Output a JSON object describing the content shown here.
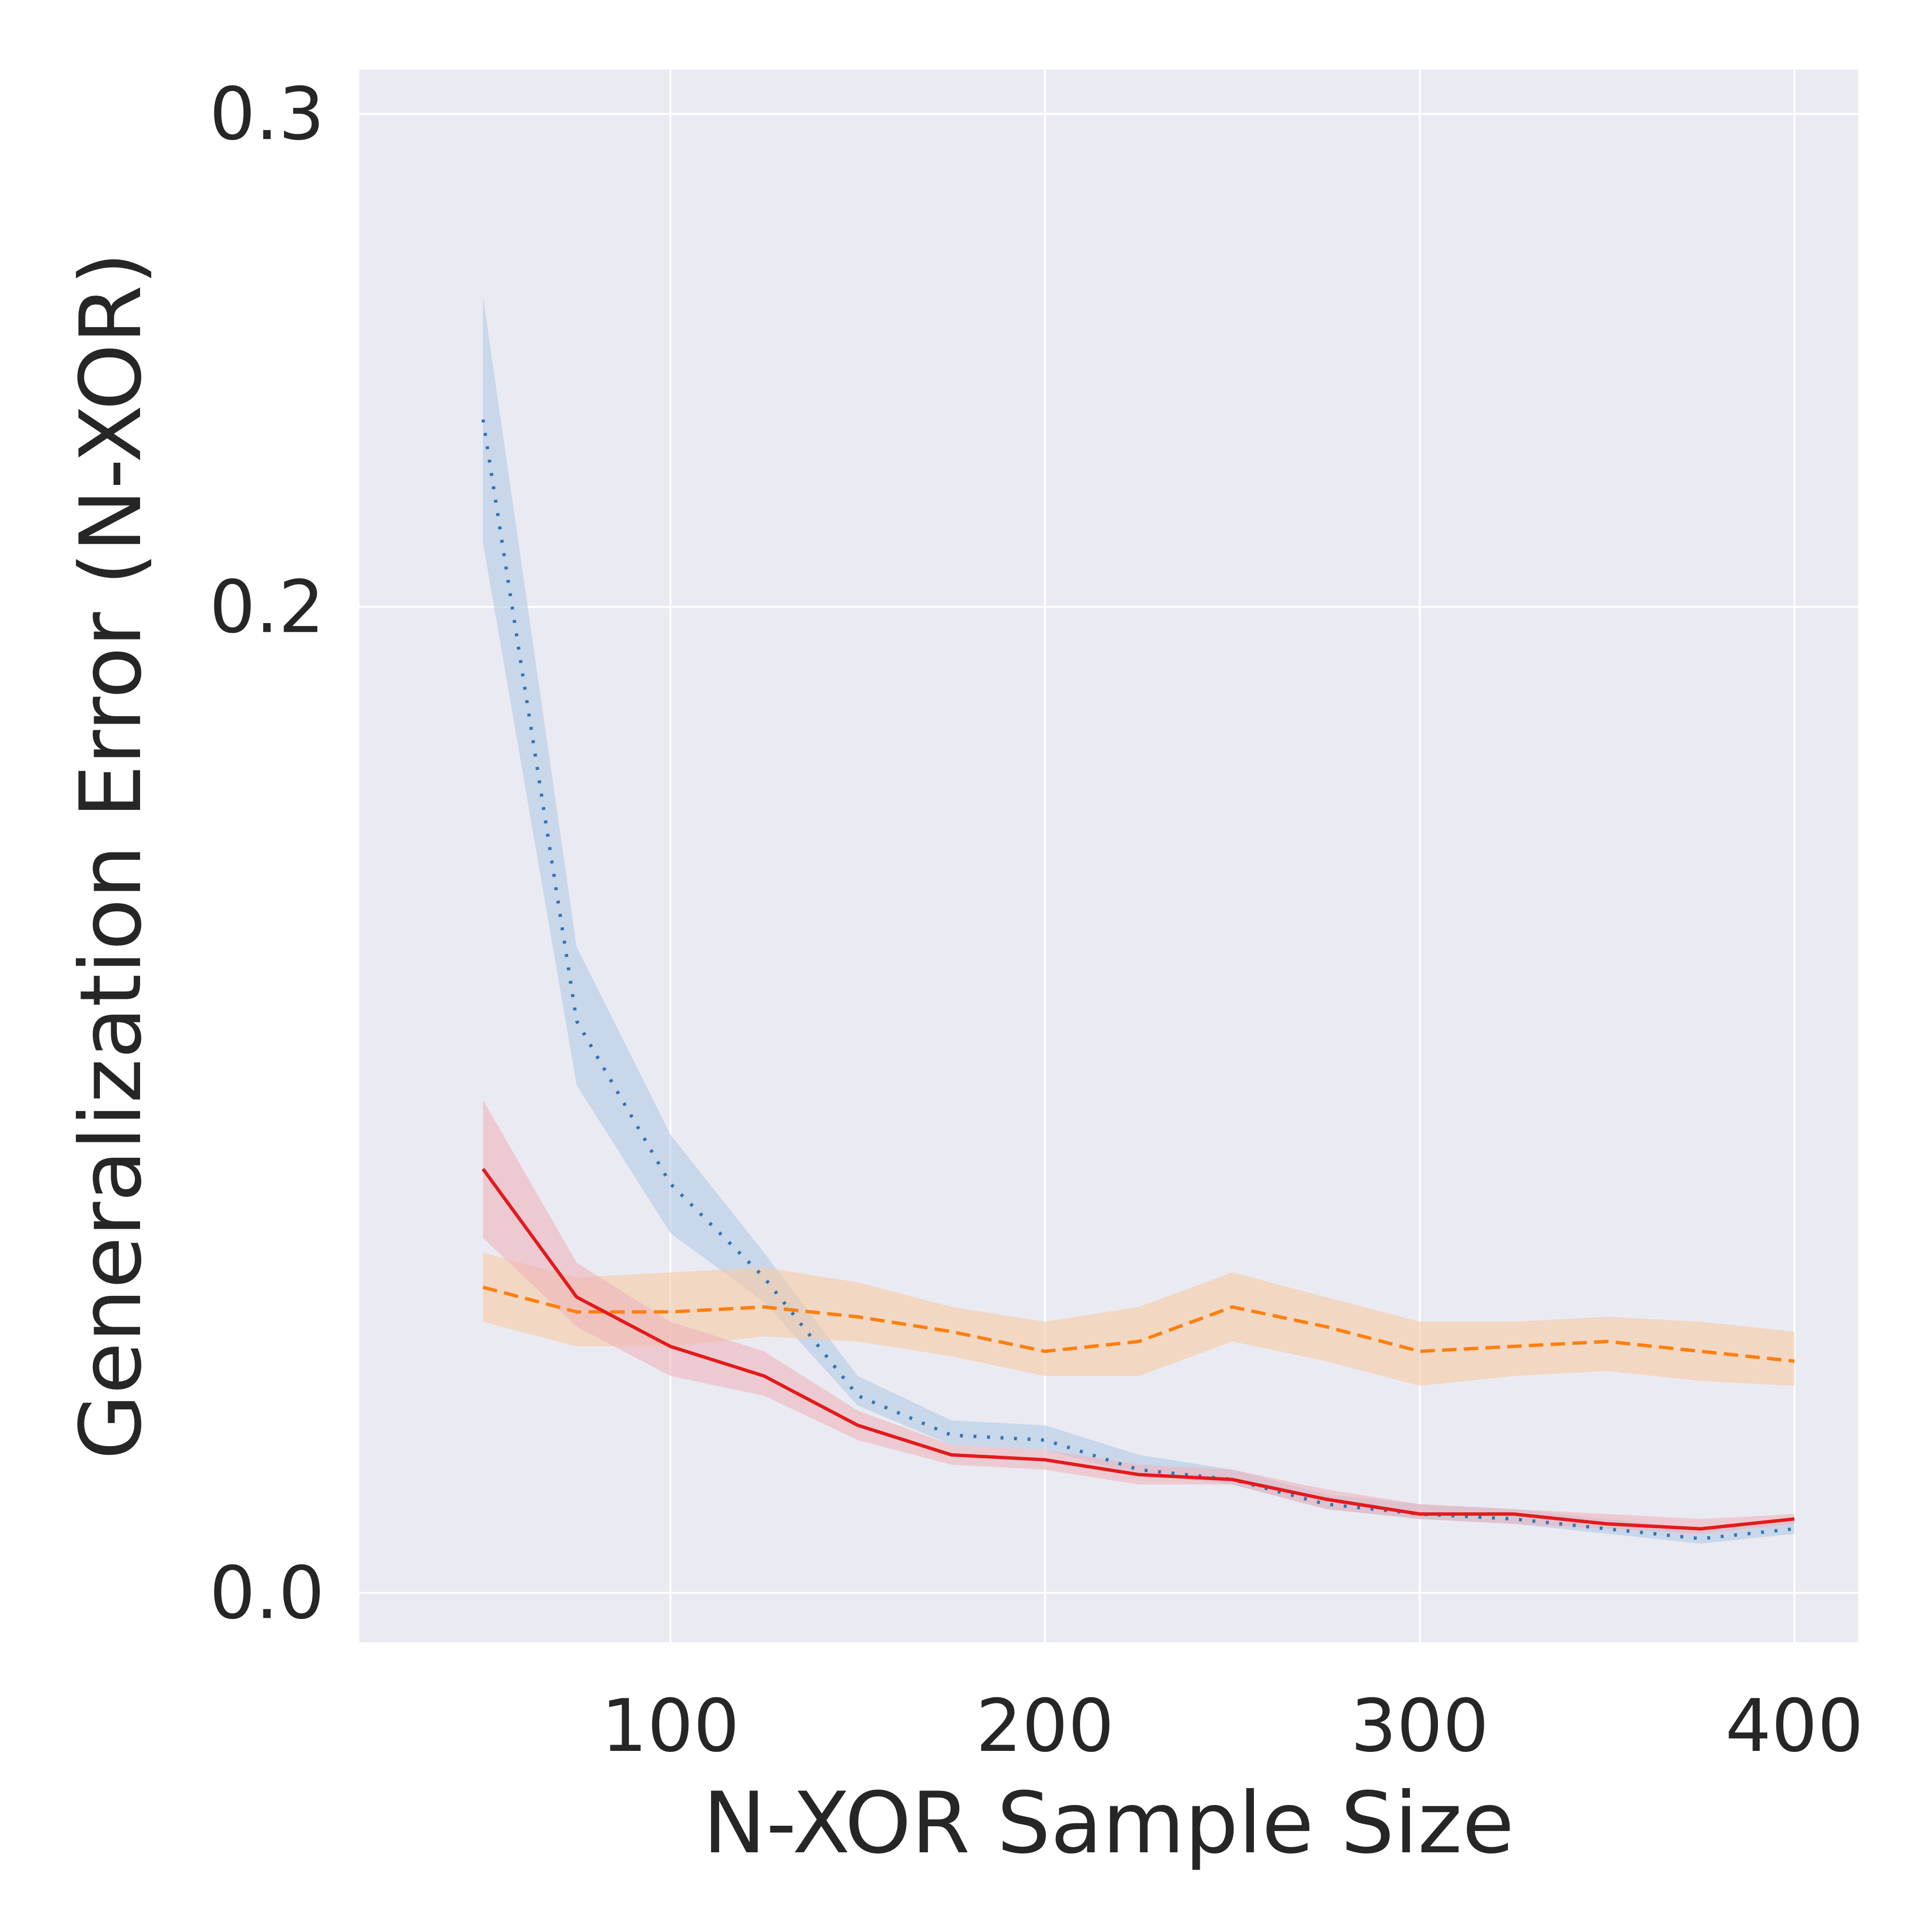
{
  "chart_data": {
    "type": "line",
    "title": "",
    "xlabel": "N-XOR Sample Size",
    "ylabel": "Generalization Error (N-XOR)",
    "xlim": [
      17,
      417
    ],
    "ylim": [
      -0.01,
      0.309
    ],
    "xticks": [
      100,
      200,
      300,
      400
    ],
    "xtick_labels": [
      "100",
      "200",
      "300",
      "400"
    ],
    "yticks": [
      0.0,
      0.2,
      0.3
    ],
    "ytick_labels": [
      "0.0",
      "0.2",
      "0.3"
    ],
    "grid": true,
    "legend": "none",
    "x": [
      50,
      75,
      100,
      125,
      150,
      175,
      200,
      225,
      250,
      275,
      300,
      325,
      350,
      375,
      400
    ],
    "series": [
      {
        "color": "#3274b5",
        "fill": "#b3c9e4",
        "style": "dotted",
        "values": [
          0.238,
          0.116,
          0.083,
          0.064,
          0.04,
          0.032,
          0.031,
          0.025,
          0.023,
          0.018,
          0.016,
          0.015,
          0.013,
          0.011,
          0.013
        ],
        "lower": [
          0.213,
          0.103,
          0.073,
          0.059,
          0.038,
          0.03,
          0.029,
          0.024,
          0.022,
          0.017,
          0.015,
          0.014,
          0.012,
          0.01,
          0.012
        ],
        "upper": [
          0.263,
          0.131,
          0.093,
          0.069,
          0.044,
          0.035,
          0.034,
          0.028,
          0.025,
          0.02,
          0.018,
          0.017,
          0.015,
          0.013,
          0.015
        ]
      },
      {
        "color": "#ff7f0e",
        "fill": "#f6c9a3",
        "style": "dashed",
        "values": [
          0.062,
          0.057,
          0.057,
          0.058,
          0.056,
          0.053,
          0.049,
          0.051,
          0.058,
          0.054,
          0.049,
          0.05,
          0.051,
          0.049,
          0.047
        ],
        "lower": [
          0.055,
          0.05,
          0.05,
          0.052,
          0.051,
          0.048,
          0.044,
          0.044,
          0.051,
          0.047,
          0.042,
          0.044,
          0.045,
          0.043,
          0.042
        ],
        "upper": [
          0.069,
          0.064,
          0.065,
          0.066,
          0.063,
          0.058,
          0.055,
          0.058,
          0.065,
          0.06,
          0.055,
          0.055,
          0.056,
          0.055,
          0.053
        ]
      },
      {
        "color": "#e31a1c",
        "fill": "#eeb4bb",
        "style": "solid",
        "values": [
          0.086,
          0.06,
          0.05,
          0.044,
          0.034,
          0.028,
          0.027,
          0.024,
          0.023,
          0.019,
          0.016,
          0.016,
          0.014,
          0.013,
          0.015
        ],
        "lower": [
          0.072,
          0.054,
          0.044,
          0.04,
          0.031,
          0.026,
          0.025,
          0.022,
          0.022,
          0.017,
          0.015,
          0.014,
          0.013,
          0.012,
          0.014
        ],
        "upper": [
          0.1,
          0.067,
          0.055,
          0.049,
          0.037,
          0.03,
          0.029,
          0.026,
          0.025,
          0.021,
          0.018,
          0.017,
          0.016,
          0.015,
          0.016
        ]
      }
    ]
  }
}
